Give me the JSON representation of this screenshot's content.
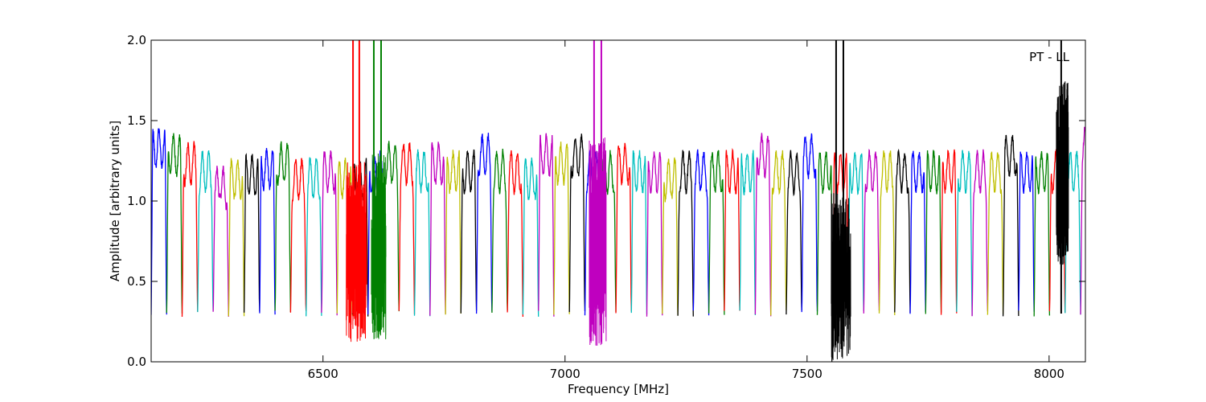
{
  "chart_data": {
    "type": "line",
    "xlabel": "Frequency [MHz]",
    "ylabel": "Amplitude [arbitrary units]",
    "annotation": "PT - LL",
    "xlim": [
      6145,
      8075
    ],
    "ylim": [
      0.0,
      2.0
    ],
    "xticks": [
      6500,
      7000,
      7500,
      8000
    ],
    "xtick_labels": [
      "6500",
      "7000",
      "7500",
      "8000"
    ],
    "yticks": [
      0.0,
      0.5,
      1.0,
      1.5,
      2.0
    ],
    "ytick_labels": [
      "0.0",
      "0.5",
      "1.0",
      "1.5",
      "2.0"
    ],
    "grid": false,
    "legend": "none",
    "channel_width_mhz": 32,
    "first_channel_start_mhz": 6145,
    "colors": [
      "#0000ff",
      "#008000",
      "#ff0000",
      "#00bfbf",
      "#bf00bf",
      "#bfbf00",
      "#000000"
    ],
    "channel_peak_levels": [
      1.45,
      1.4,
      1.35,
      1.3,
      1.2,
      1.25,
      1.28,
      1.32,
      1.35,
      1.25,
      1.26,
      1.3,
      1.25,
      1.25,
      1.3,
      1.35,
      1.35,
      1.3,
      1.35,
      1.3,
      1.3,
      1.4,
      1.3,
      1.3,
      1.25,
      1.4,
      1.35,
      1.4,
      1.3,
      1.3,
      1.35,
      1.3,
      1.3,
      1.25,
      1.3,
      1.3,
      1.3,
      1.3,
      1.3,
      1.4,
      1.3,
      1.3,
      1.4,
      1.3,
      1.3,
      1.3,
      1.3,
      1.3,
      1.3,
      1.3,
      1.3,
      1.3,
      1.3,
      1.3,
      1.3,
      1.4,
      1.3,
      1.3,
      1.3,
      1.3
    ],
    "rfi_spikes": [
      {
        "x": 6562,
        "color": "#ff0000"
      },
      {
        "x": 6575,
        "color": "#ff0000"
      },
      {
        "x": 6605,
        "color": "#008000"
      },
      {
        "x": 6620,
        "color": "#008000"
      },
      {
        "x": 7060,
        "color": "#bf00bf"
      },
      {
        "x": 7075,
        "color": "#bf00bf"
      },
      {
        "x": 7560,
        "color": "#000000"
      },
      {
        "x": 7575,
        "color": "#000000"
      },
      {
        "x": 8025,
        "color": "#000000"
      }
    ],
    "noise_regions": [
      {
        "x0": 6548,
        "x1": 6590,
        "y_min": 0.12,
        "y_max": 1.25
      },
      {
        "x0": 6600,
        "x1": 6630,
        "y_min": 0.14,
        "y_max": 1.3
      },
      {
        "x0": 7050,
        "x1": 7085,
        "y_min": 0.1,
        "y_max": 1.4
      },
      {
        "x0": 7550,
        "x1": 7590,
        "y_min": 0.0,
        "y_max": 1.05
      },
      {
        "x0": 8015,
        "x1": 8040,
        "y_min": 0.6,
        "y_max": 1.75
      }
    ]
  }
}
